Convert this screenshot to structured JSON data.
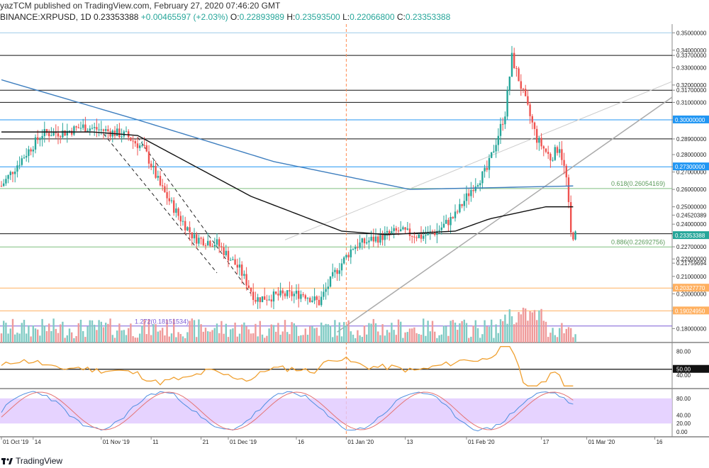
{
  "header": {
    "publisher_line": "yazTCM published on TradingView.com, February 27, 2020 07:46:20 GMT",
    "symbol": "BINANCE:XRPUSD, 1D",
    "last": "0.23353388",
    "change": "+0.00465597 (+2.03%)",
    "open_label": "O:",
    "open": "0.22893989",
    "high_label": "H:",
    "high": "0.23593500",
    "low_label": "L:",
    "low": "0.22066800",
    "close_label": "C:",
    "close": "0.23353388"
  },
  "footer": {
    "brand": "TradingView"
  },
  "colors": {
    "up": "#26a69a",
    "down": "#ef5350",
    "vol_up": "#80cbc4",
    "vol_down": "#ef9a9a",
    "ma_long": "#3f7fbf",
    "ma_short": "#111111",
    "rsi": "#f0a030",
    "stoch_k": "#4f8fe0",
    "stoch_d": "#e57373",
    "stoch_band": "#e0c8ff",
    "fib_green": "#7fbf7f",
    "fib_orange": "#ffb060",
    "fib_purple": "#7b5cd6",
    "blue_level": "#2196f3"
  },
  "chart_data": {
    "type": "candlestick",
    "price_ylim": [
      0.172,
      0.355
    ],
    "x_tick_labels": [
      "01 Oct '19",
      "14",
      "01 Nov '19",
      "11",
      "21",
      "01 Dec '19",
      "16",
      "01 Jan '20",
      "13",
      "01 Feb '20",
      "17",
      "01 Mar '20",
      "16"
    ],
    "price_axis_labels": [
      "0.35000000",
      "0.34000000",
      "0.33700000",
      "0.33000000",
      "0.32000000",
      "0.31700000",
      "0.31000000",
      "0.30000000",
      "0.28900000",
      "0.28000000",
      "0.27300000",
      "0.27000000",
      "0.26000000",
      "0.25000000",
      "0.24520389",
      "0.24000000",
      "0.23450000",
      "0.23353388",
      "0.22700000",
      "0.22000000",
      "0.21759694",
      "0.21000000",
      "0.20327770",
      "0.20000000",
      "0.19024950",
      "0.18000000"
    ],
    "horizontal_levels": [
      {
        "price": 0.35,
        "color": "#9ecbe8"
      },
      {
        "price": 0.337,
        "color": "#111111"
      },
      {
        "price": 0.317,
        "color": "#111111"
      },
      {
        "price": 0.31,
        "color": "#111111"
      },
      {
        "price": 0.3,
        "color": "#2196f3"
      },
      {
        "price": 0.289,
        "color": "#111111"
      },
      {
        "price": 0.273,
        "color": "#2196f3"
      },
      {
        "price": 0.2605,
        "color": "#7fbf7f"
      },
      {
        "price": 0.2345,
        "color": "#111111"
      },
      {
        "price": 0.2269,
        "color": "#7fbf7f"
      },
      {
        "price": 0.2033,
        "color": "#ffb060"
      },
      {
        "price": 0.1902,
        "color": "#ffb060"
      },
      {
        "price": 0.1815,
        "color": "#7b5cd6"
      }
    ],
    "fib_labels": [
      {
        "text": "0.618(0.26054169)",
        "price": 0.2605
      },
      {
        "text": "0.886(0.22692756)",
        "price": 0.2269
      },
      {
        "text": "1.272(0.18151534)",
        "price": 0.1815
      }
    ],
    "highlight_labels": [
      {
        "text": "0.30000000",
        "price": 0.3,
        "bg": "#2196f3",
        "fg": "#ffffff"
      },
      {
        "text": "0.27300000",
        "price": 0.273,
        "bg": "#2196f3",
        "fg": "#ffffff"
      },
      {
        "text": "0.23353388",
        "price": 0.2335,
        "bg": "#26a69a",
        "fg": "#ffffff"
      },
      {
        "text": "0.20327770",
        "price": 0.2033,
        "bg": "#ffb060",
        "fg": "#ffffff"
      },
      {
        "text": "0.19024950",
        "price": 0.1902,
        "bg": "#ffb060",
        "fg": "#ffffff"
      }
    ],
    "close_waypoints": [
      [
        0,
        0.262
      ],
      [
        8,
        0.276
      ],
      [
        18,
        0.292
      ],
      [
        28,
        0.293
      ],
      [
        36,
        0.296
      ],
      [
        45,
        0.294
      ],
      [
        55,
        0.291
      ],
      [
        63,
        0.283
      ],
      [
        70,
        0.262
      ],
      [
        78,
        0.245
      ],
      [
        85,
        0.232
      ],
      [
        95,
        0.229
      ],
      [
        105,
        0.214
      ],
      [
        112,
        0.197
      ],
      [
        122,
        0.199
      ],
      [
        133,
        0.2
      ],
      [
        140,
        0.195
      ],
      [
        147,
        0.212
      ],
      [
        155,
        0.227
      ],
      [
        163,
        0.231
      ],
      [
        175,
        0.236
      ],
      [
        185,
        0.233
      ],
      [
        192,
        0.236
      ],
      [
        200,
        0.245
      ],
      [
        208,
        0.262
      ],
      [
        214,
        0.271
      ],
      [
        222,
        0.304
      ],
      [
        225,
        0.336
      ],
      [
        230,
        0.315
      ],
      [
        236,
        0.289
      ],
      [
        242,
        0.278
      ],
      [
        246,
        0.285
      ],
      [
        249,
        0.266
      ],
      [
        251,
        0.234
      ],
      [
        253,
        0.2335
      ]
    ],
    "ma_long_waypoints": [
      [
        0,
        0.323
      ],
      [
        60,
        0.3
      ],
      [
        120,
        0.276
      ],
      [
        180,
        0.26
      ],
      [
        253,
        0.262
      ]
    ],
    "ma_short_waypoints": [
      [
        0,
        0.293
      ],
      [
        40,
        0.293
      ],
      [
        60,
        0.291
      ],
      [
        110,
        0.256
      ],
      [
        150,
        0.236
      ],
      [
        170,
        0.234
      ],
      [
        200,
        0.236
      ],
      [
        215,
        0.243
      ],
      [
        240,
        0.25
      ],
      [
        253,
        0.25
      ]
    ],
    "rsi": {
      "levels_labels": [
        "80.00",
        "50.00",
        "40.00"
      ],
      "last_label": "50.00",
      "ylim": [
        20,
        90
      ]
    },
    "stochastic": {
      "levels_labels": [
        "80.00",
        "40.00",
        "20.00",
        "0.00"
      ],
      "band": [
        20,
        80
      ],
      "ylim": [
        -5,
        100
      ]
    }
  }
}
